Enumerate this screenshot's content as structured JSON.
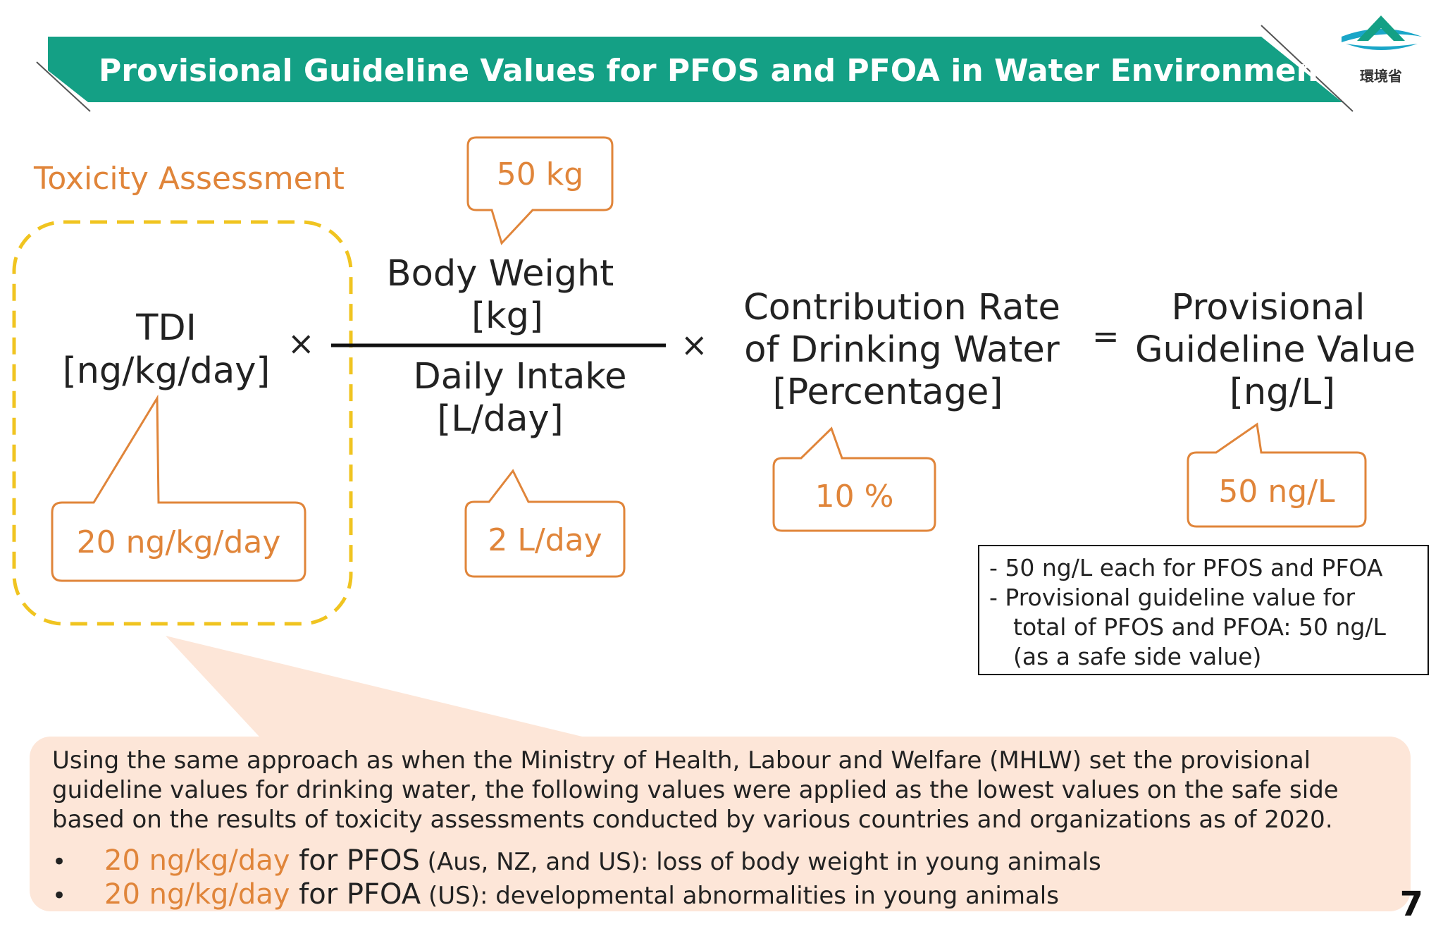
{
  "header": {
    "title": "Provisional Guideline Values for PFOS and PFOA in Water Environment",
    "logo_text": "環境省",
    "band_color": "#14a085"
  },
  "toxicity_label": "Toxicity Assessment",
  "formula": {
    "tdi_term": "TDI",
    "tdi_unit": "[ng/kg/day]",
    "times": "×",
    "body_weight": "Body Weight",
    "body_weight_unit": "[kg]",
    "daily_intake": "Daily Intake",
    "daily_intake_unit": "[L/day]",
    "contribution_line1": "Contribution Rate",
    "contribution_line2": "of Drinking Water",
    "contribution_unit": "[Percentage]",
    "equals": "=",
    "result_line1": "Provisional",
    "result_line2": "Guideline Value",
    "result_unit": "[ng/L]"
  },
  "callouts": {
    "body_weight_value": "50 kg",
    "tdi_value": "20 ng/kg/day",
    "intake_value": "2 L/day",
    "contribution_value": "10 %",
    "result_value": "50 ng/L"
  },
  "note": {
    "line1": "- 50 ng/L each for PFOS and PFOA",
    "line2": "- Provisional guideline value for",
    "line3": "total of PFOS and PFOA: 50 ng/L",
    "line4": "(as a safe side value)"
  },
  "panel": {
    "paragraph": "Using the same approach as when the Ministry of Health, Labour and Welfare (MHLW) set the provisional guideline values for drinking water, the following values were applied as the lowest values on the safe side based on the results of toxicity assessments conducted by various countries and organizations as of 2020.",
    "bullets": [
      {
        "marker": "•",
        "value": "20 ng/kg/day",
        "compound": " for PFOS",
        "detail": " (Aus, NZ, and US): loss of body weight in young animals"
      },
      {
        "marker": "•",
        "value": "20 ng/kg/day",
        "compound": " for PFOA",
        "detail": " (US): developmental abnormalities in young animals"
      }
    ]
  },
  "page_number": "7",
  "colors": {
    "accent_orange": "#e0853a",
    "dashed_yellow": "#f0c420",
    "panel_fill": "#fde6d8"
  }
}
